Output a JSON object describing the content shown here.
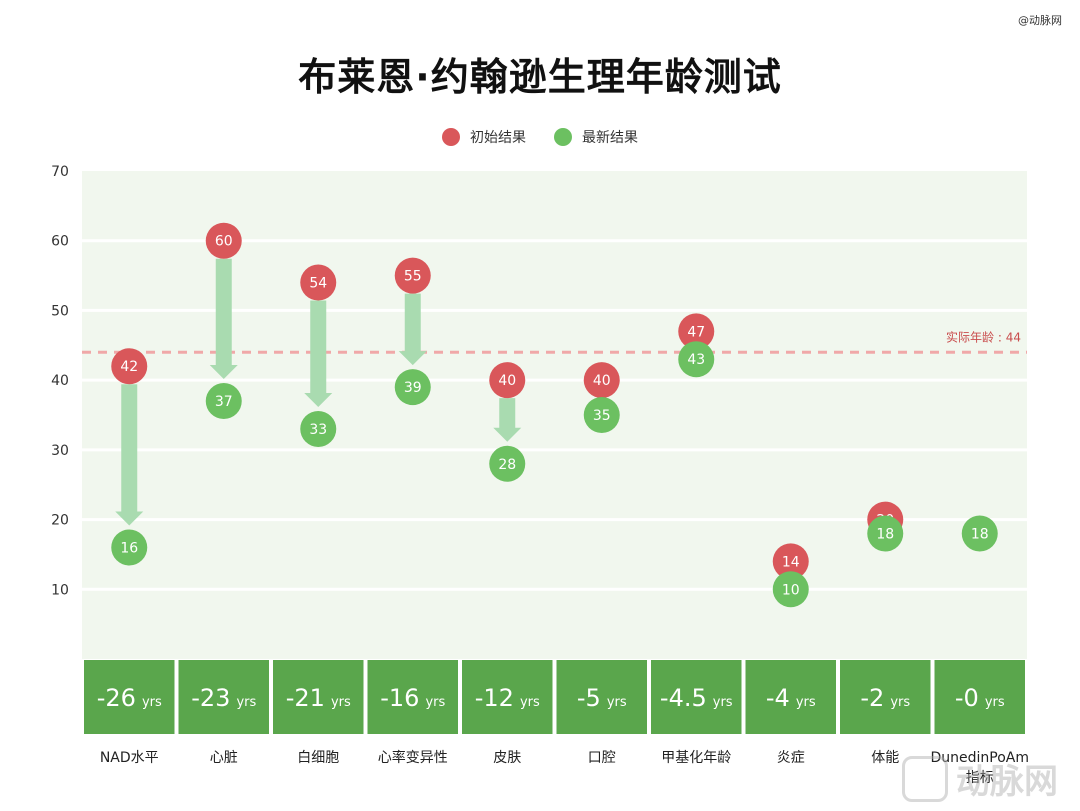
{
  "watermark_top": "@动脉网",
  "watermark_bottom": "动脉网",
  "colors": {
    "initial": "#d9575a",
    "latest": "#6cc061",
    "arrow": "#a9dbb0",
    "panel": "#f1f7ee",
    "box": "#5aa64c",
    "ref_line": "#f0a8a8",
    "ref_text": "#c94d4d"
  },
  "chart_data": {
    "type": "scatter",
    "title": "布莱恩·约翰逊生理年龄测试",
    "legend": [
      "初始结果",
      "最新结果"
    ],
    "legend_position": "top-center",
    "ylim": [
      0,
      70
    ],
    "yticks": [
      10,
      20,
      30,
      40,
      50,
      60,
      70
    ],
    "grid": true,
    "reference_line": {
      "value": 44,
      "label": "实际年龄 : 44"
    },
    "categories": [
      "NAD水平",
      "心脏",
      "白细胞",
      "心率变异性",
      "皮肤",
      "口腔",
      "甲基化年龄",
      "炎症",
      "体能",
      "DunedinPoAm\n指标"
    ],
    "series": [
      {
        "name": "初始结果",
        "values": [
          42,
          60,
          54,
          55,
          40,
          40,
          47,
          14,
          20,
          null
        ]
      },
      {
        "name": "最新结果",
        "values": [
          16,
          37,
          33,
          39,
          28,
          35,
          43,
          10,
          18,
          18
        ]
      }
    ],
    "changes": [
      {
        "num": "-26",
        "unit": "yrs"
      },
      {
        "num": "-23",
        "unit": "yrs"
      },
      {
        "num": "-21",
        "unit": "yrs"
      },
      {
        "num": "-16",
        "unit": "yrs"
      },
      {
        "num": "-12",
        "unit": "yrs"
      },
      {
        "num": "-5",
        "unit": "yrs"
      },
      {
        "num": "-4.5",
        "unit": "yrs"
      },
      {
        "num": "-4",
        "unit": "yrs"
      },
      {
        "num": "-2",
        "unit": "yrs"
      },
      {
        "num": "-0",
        "unit": "yrs"
      }
    ]
  }
}
